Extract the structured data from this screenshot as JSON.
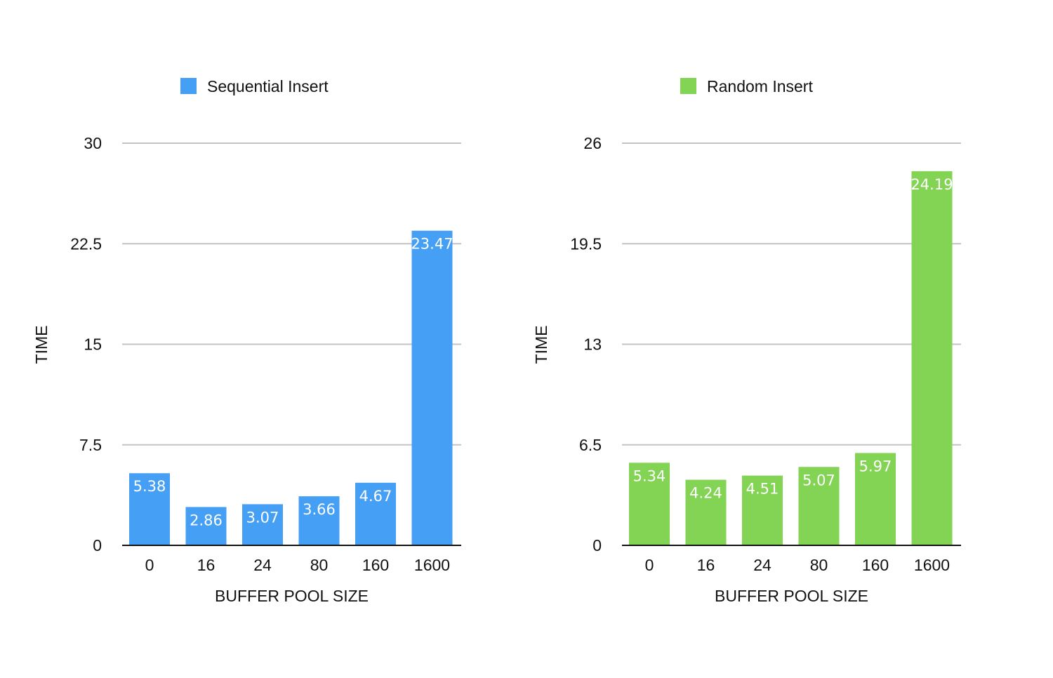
{
  "chart_data": [
    {
      "type": "bar",
      "categories": [
        "0",
        "16",
        "24",
        "80",
        "160",
        "1600"
      ],
      "series": [
        {
          "name": "Sequential Insert",
          "values": [
            5.38,
            2.86,
            3.07,
            3.66,
            4.67,
            23.47
          ],
          "color": "#459ff5"
        }
      ],
      "xlabel": "BUFFER POOL SIZE",
      "ylabel": "TIME",
      "ylim": [
        0,
        30
      ],
      "yticks": [
        "0",
        "7.5",
        "15",
        "22.5",
        "30"
      ],
      "grid": true,
      "legend_position": "top-center"
    },
    {
      "type": "bar",
      "categories": [
        "0",
        "16",
        "24",
        "80",
        "160",
        "1600"
      ],
      "series": [
        {
          "name": "Random Insert",
          "values": [
            5.34,
            4.24,
            4.51,
            5.07,
            5.97,
            24.19
          ],
          "color": "#83d355"
        }
      ],
      "xlabel": "BUFFER POOL SIZE",
      "ylabel": "TIME",
      "ylim": [
        0,
        26
      ],
      "yticks": [
        "0",
        "6.5",
        "13",
        "19.5",
        "26"
      ],
      "grid": true,
      "legend_position": "top-center"
    }
  ]
}
